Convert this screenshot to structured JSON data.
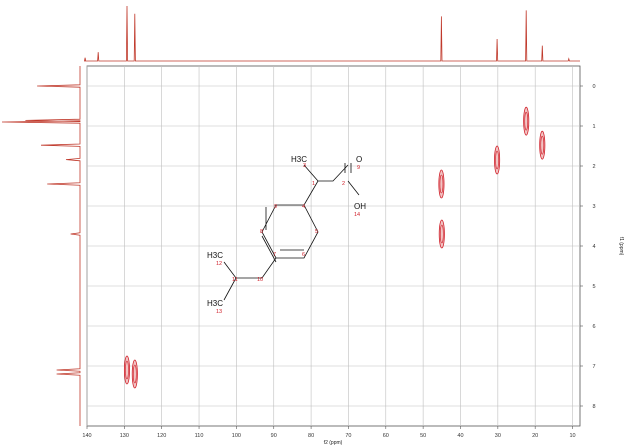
{
  "chart_data": {
    "type": "scatter",
    "subtype": "2D NMR HSQC contour plot",
    "title": "",
    "xlabel": "f2 (ppm)",
    "ylabel": "f1 (ppm)",
    "xlim": [
      140,
      8
    ],
    "ylim": [
      -0.5,
      8.5
    ],
    "x_ticks": [
      140,
      130,
      120,
      110,
      100,
      90,
      80,
      70,
      60,
      50,
      40,
      30,
      20,
      10
    ],
    "y_ticks": [
      0,
      1,
      2,
      3,
      4,
      5,
      6,
      7,
      8
    ],
    "grid": true,
    "colors": {
      "trace": "#c0392b",
      "peak_ring": "#d0202a",
      "peak_core": "#f2c4c4",
      "grid": "#bfbfbf",
      "atom_number": "#d0202a"
    },
    "cross_peaks": [
      {
        "x": 129.3,
        "y": 7.1
      },
      {
        "x": 127.2,
        "y": 7.2
      },
      {
        "x": 45.1,
        "y": 2.45
      },
      {
        "x": 45.0,
        "y": 3.7
      },
      {
        "x": 30.2,
        "y": 1.85
      },
      {
        "x": 22.4,
        "y": 0.88
      },
      {
        "x": 18.1,
        "y": 1.48
      }
    ],
    "top_projection_peaks": [
      {
        "x": 140.5,
        "h": 0.06
      },
      {
        "x": 137.0,
        "h": 0.16
      },
      {
        "x": 129.3,
        "h": 1.0
      },
      {
        "x": 127.2,
        "h": 0.86
      },
      {
        "x": 45.1,
        "h": 0.81
      },
      {
        "x": 30.2,
        "h": 0.4
      },
      {
        "x": 22.4,
        "h": 0.92
      },
      {
        "x": 18.1,
        "h": 0.28
      },
      {
        "x": 11.0,
        "h": 0.04
      }
    ],
    "left_projection_peaks": [
      {
        "y": 0.0,
        "h": 0.55
      },
      {
        "y": 0.86,
        "h": 0.7
      },
      {
        "y": 0.9,
        "h": 1.0
      },
      {
        "y": 1.48,
        "h": 0.5
      },
      {
        "y": 1.84,
        "h": 0.18
      },
      {
        "y": 2.45,
        "h": 0.42
      },
      {
        "y": 3.7,
        "h": 0.12
      },
      {
        "y": 7.1,
        "h": 0.3
      },
      {
        "y": 7.2,
        "h": 0.3
      }
    ],
    "structure": {
      "labels": [
        "H3C",
        "O",
        "OH",
        "H3C",
        "H3C"
      ],
      "atom_numbers": [
        "1",
        "2",
        "3",
        "4",
        "5",
        "6",
        "7",
        "8",
        "9",
        "10",
        "11",
        "12",
        "13",
        "14"
      ]
    }
  }
}
